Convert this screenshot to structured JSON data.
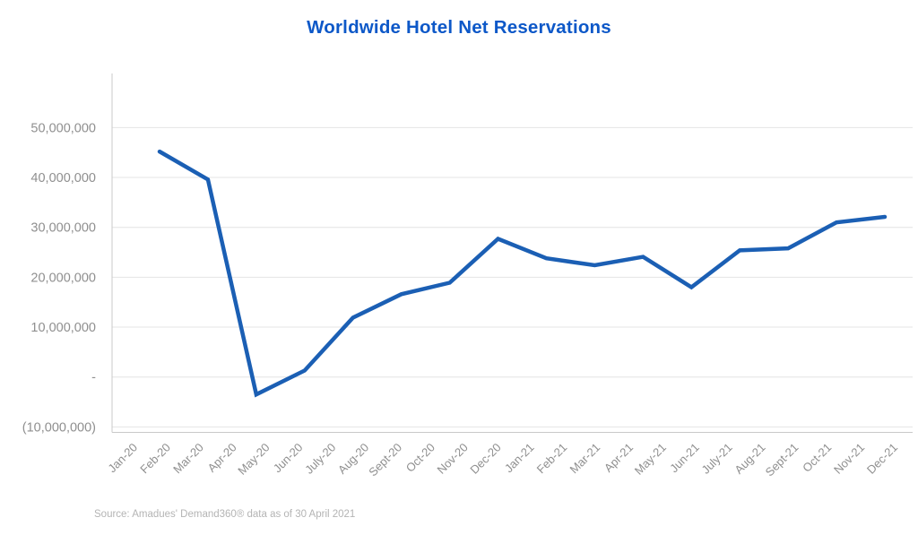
{
  "chart_data": {
    "type": "line",
    "title": "Worldwide Hotel Net Reservations",
    "source_note": "Source: Amadues' Demand360® data as of 30 April 2021",
    "x_axis_labels": [
      "Jan-20",
      "Feb-20",
      "Mar-20",
      "Apr-20",
      "May-20",
      "Jun-20",
      "July-20",
      "Aug-20",
      "Sept-20",
      "Oct-20",
      "Nov-20",
      "Dec-20",
      "Jan-21",
      "Feb-21",
      "Mar-21",
      "Apr-21",
      "May-21",
      "Jun-21",
      "July-21",
      "Aug-21",
      "Sept-21",
      "Oct-21",
      "Nov-21",
      "Dec-21"
    ],
    "y_axis": {
      "tick_labels": [
        "50,000,000",
        "40,000,000",
        "30,000,000",
        "20,000,000",
        "10,000,000",
        "-",
        "(10,000,000)"
      ],
      "tick_values": [
        50000000,
        40000000,
        30000000,
        20000000,
        10000000,
        0,
        -10000000
      ],
      "ylim": [
        -11000000,
        56000000
      ]
    },
    "series": [
      {
        "name": "Worldwide hotel net reservations",
        "points_months": [
          "Jan-20",
          "Feb-20",
          "Mar-20",
          "Apr-20",
          "May-20",
          "Jun-20",
          "July-20",
          "Aug-20",
          "Sept-20",
          "Oct-20",
          "Nov-20",
          "Dec-20",
          "Jan-21",
          "Feb-21",
          "Mar-21",
          "Apr-21"
        ],
        "values": [
          45200000,
          39600000,
          -3500000,
          1300000,
          11900000,
          16600000,
          18900000,
          27700000,
          23800000,
          22400000,
          24100000,
          18000000,
          25400000,
          25800000,
          31000000,
          32100000
        ]
      }
    ],
    "legend": "none",
    "grid": "horizontal",
    "layout_note": "16 plotted points stretch across the full axis width while 24 month labels are shown (data as of 30 April 2021)",
    "colors": {
      "line": "#1b5fb4",
      "title": "#0d58c8",
      "gridline": "#e4e4e4",
      "axis_line": "#c9c9c9",
      "tick_text": "#8f8f8f",
      "source_text": "#b4b4b4"
    }
  }
}
